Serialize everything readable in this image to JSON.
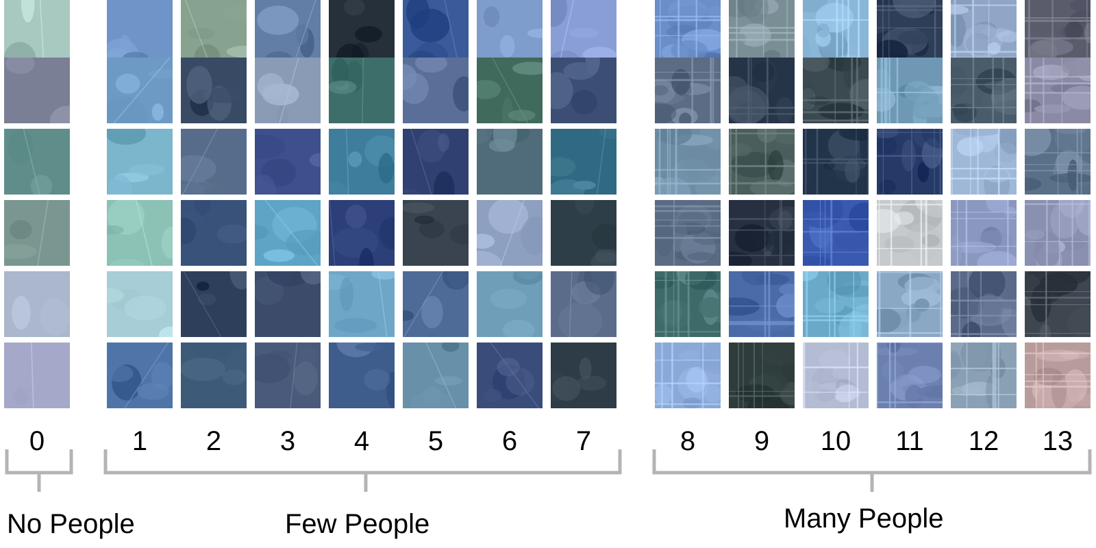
{
  "columns": [
    {
      "label": "0",
      "palette": [
        "#a7c9c0",
        "#7b7f95",
        "#5f8e8a",
        "#7a9690",
        "#aab7cc",
        "#a5a8c8"
      ]
    },
    {
      "label": "1",
      "palette": [
        "#6f94c7",
        "#6c9ac4",
        "#7bb6cd",
        "#8cc1b6",
        "#a7cdd6",
        "#4f75a8"
      ]
    },
    {
      "label": "2",
      "palette": [
        "#88a290",
        "#384a64",
        "#566c8a",
        "#38527a",
        "#2e3f5c",
        "#3d5a78"
      ]
    },
    {
      "label": "3",
      "palette": [
        "#637ea6",
        "#8a9bb6",
        "#3d4f8c",
        "#5fa3c5",
        "#3c4b6a",
        "#4a5a7a"
      ]
    },
    {
      "label": "4",
      "palette": [
        "#26303a",
        "#3e6e6a",
        "#3e7e9c",
        "#2c3f78",
        "#6ea6c8",
        "#3e5c8c"
      ]
    },
    {
      "label": "5",
      "palette": [
        "#3a5a9a",
        "#5a6f98",
        "#304070",
        "#3a4450",
        "#4e6a96",
        "#6890a8"
      ]
    },
    {
      "label": "6",
      "palette": [
        "#7e9ccc",
        "#3f6a5c",
        "#506c7a",
        "#8ea0c0",
        "#6e9eb8",
        "#3a4c7a"
      ]
    },
    {
      "label": "7",
      "palette": [
        "#8a9ed6",
        "#3c4e74",
        "#2f6a82",
        "#2e3e48",
        "#5a6c8a",
        "#2e3c48"
      ]
    },
    {
      "label": "8",
      "palette": [
        "#6a8ec8",
        "#5c6c84",
        "#6c8ca4",
        "#5a6c84",
        "#3e6a6a",
        "#8aa8d8"
      ]
    },
    {
      "label": "9",
      "palette": [
        "#7a8e96",
        "#263448",
        "#4a5e5c",
        "#263040",
        "#4a6aa8",
        "#2e3c3c"
      ]
    },
    {
      "label": "10",
      "palette": [
        "#8ab6d8",
        "#3a4a50",
        "#22344a",
        "#3a5ab0",
        "#6aaac8",
        "#b4bcd4"
      ]
    },
    {
      "label": "11",
      "palette": [
        "#2e3e58",
        "#6e98b4",
        "#263a68",
        "#c6cacc",
        "#8aa8c4",
        "#6c80b0"
      ]
    },
    {
      "label": "12",
      "palette": [
        "#90a6c6",
        "#4a5c6a",
        "#a0b8d8",
        "#8a98c0",
        "#5c6a8a",
        "#8aa0b4"
      ]
    },
    {
      "label": "13",
      "palette": [
        "#5a5c6c",
        "#8a8aa4",
        "#5a7088",
        "#8a90b0",
        "#3e4650",
        "#b89c9c"
      ]
    }
  ],
  "groups": [
    {
      "label": "No People"
    },
    {
      "label": "Few People"
    },
    {
      "label": "Many People"
    }
  ],
  "colors": {
    "bracket": "#b4b4b4",
    "text": "#000000"
  }
}
